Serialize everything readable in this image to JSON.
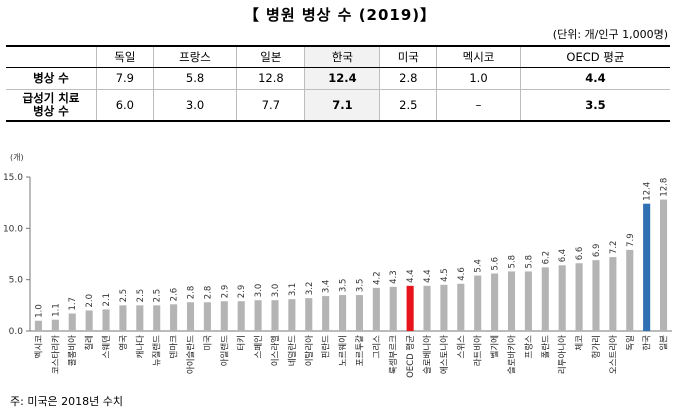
{
  "title": "【 병원 병상 수 (2019)】",
  "unit": "(단위: 개/인구 1,000명)",
  "table": {
    "headers": [
      "",
      "독일",
      "프랑스",
      "일본",
      "한국",
      "미국",
      "멕시코",
      "OECD 평균"
    ],
    "rows": [
      {
        "label": "병상 수",
        "cells": [
          "7.9",
          "5.8",
          "12.8",
          "12.4",
          "2.8",
          "1.0",
          "4.4"
        ]
      },
      {
        "label_lines": [
          "급성기 치료",
          "병상 수"
        ],
        "cells": [
          "6.0",
          "3.0",
          "7.7",
          "7.1",
          "2.5",
          "–",
          "3.5"
        ]
      }
    ]
  },
  "chart_data": {
    "type": "bar",
    "unit_label": "(개)",
    "ylim": [
      0,
      15
    ],
    "yticks": [
      "0.0",
      "5.0",
      "10.0",
      "15.0"
    ],
    "grid": false,
    "categories": [
      "멕시코",
      "코스타리카",
      "콜롬비아",
      "칠레",
      "스웨덴",
      "영국",
      "캐나다",
      "뉴질랜드",
      "덴마크",
      "아이슬란드",
      "미국",
      "아일랜드",
      "터키",
      "스페인",
      "이스라엘",
      "네덜란드",
      "이탈리아",
      "핀란드",
      "노르웨이",
      "포르투갈",
      "그리스",
      "룩셈부르크",
      "OECD 평균",
      "슬로베니아",
      "에스토니아",
      "스위스",
      "라트비아",
      "벨기에",
      "슬로바키아",
      "프랑스",
      "폴란드",
      "리투아니아",
      "체코",
      "헝가리",
      "오스트리아",
      "독일",
      "한국",
      "일본"
    ],
    "values": [
      1.0,
      1.1,
      1.7,
      2.0,
      2.1,
      2.5,
      2.5,
      2.5,
      2.6,
      2.8,
      2.8,
      2.9,
      2.9,
      3.0,
      3.0,
      3.1,
      3.2,
      3.4,
      3.5,
      3.5,
      4.2,
      4.3,
      4.4,
      4.4,
      4.5,
      4.6,
      5.4,
      5.6,
      5.8,
      5.8,
      6.2,
      6.4,
      6.6,
      6.9,
      7.2,
      7.9,
      12.4,
      12.8
    ],
    "colors": {
      "default": "#b4b4b4",
      "oecd": "#e8141c",
      "korea": "#2f6fb3"
    },
    "highlight": {
      "OECD 평균": "oecd",
      "한국": "korea"
    }
  },
  "footnote": "주: 미국은 2018년 수치"
}
